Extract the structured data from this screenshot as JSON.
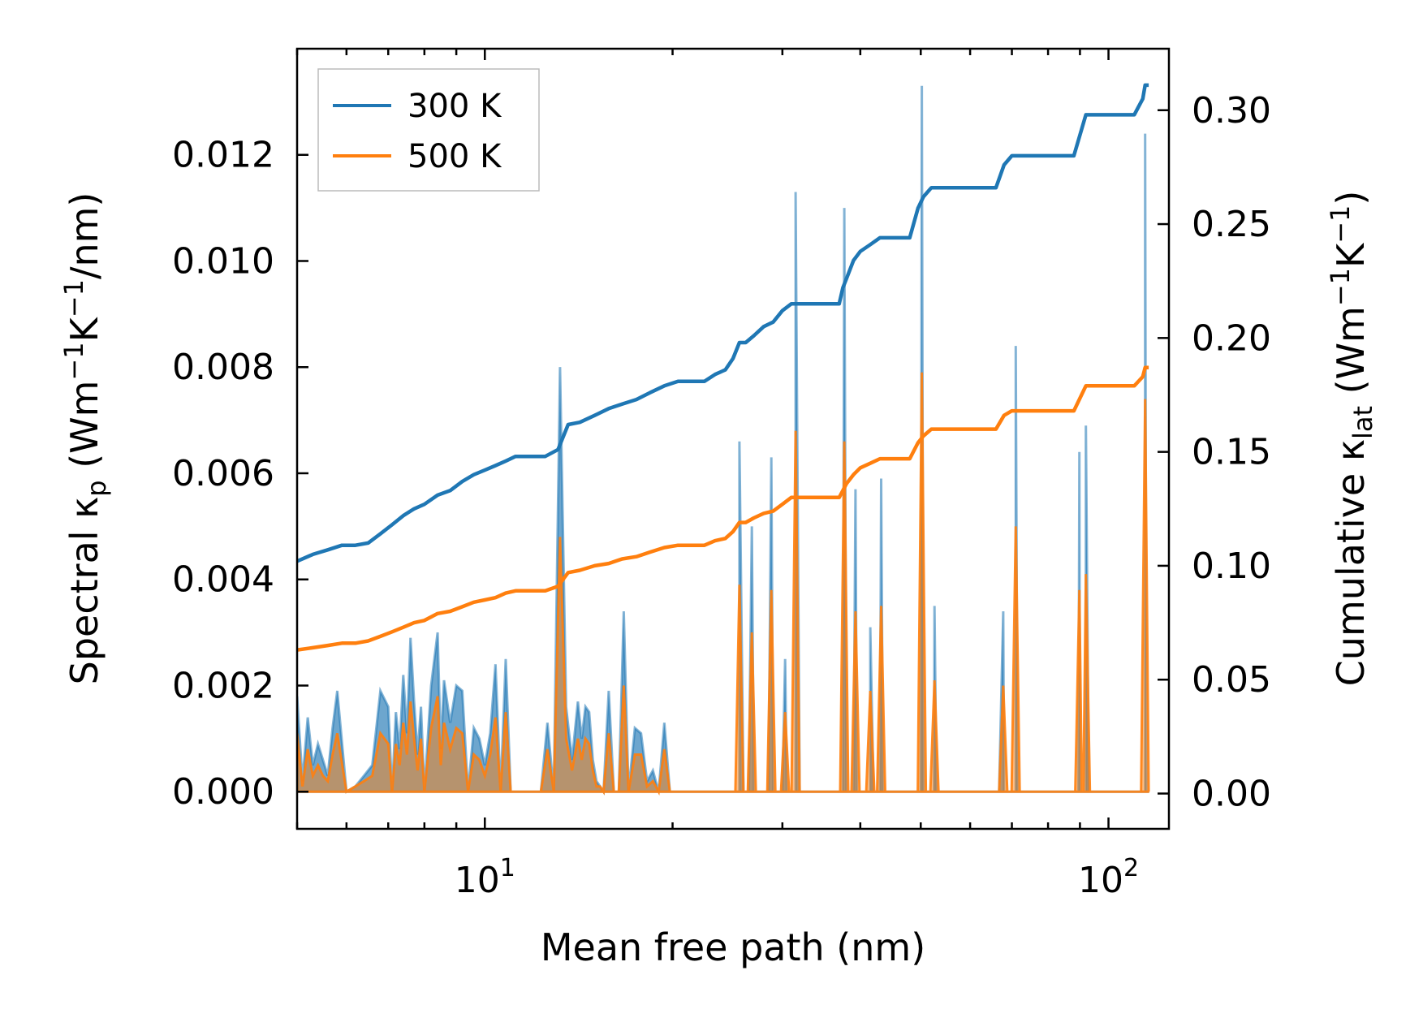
{
  "chart_data": {
    "type": "line",
    "xscale": "log",
    "xlim": [
      5.0,
      125.0
    ],
    "xlabel": "Mean free path (nm)",
    "x_tick_labels": [
      {
        "base": "10",
        "exp": "1",
        "value": 10
      },
      {
        "base": "10",
        "exp": "2",
        "value": 100
      }
    ],
    "left_axis": {
      "ylabel_parts": {
        "pre": "Spectral κ",
        "sub": "p",
        "mid1": " (Wm",
        "sup1": "−1",
        "mid2": "K",
        "sup2": "−1",
        "post": "/nm)"
      },
      "ylim": [
        -0.0007,
        0.014
      ],
      "ticks": [
        0.0,
        0.002,
        0.004,
        0.006,
        0.008,
        0.01,
        0.012
      ],
      "tick_labels": [
        "0.000",
        "0.002",
        "0.004",
        "0.006",
        "0.008",
        "0.010",
        "0.012"
      ]
    },
    "right_axis": {
      "ylabel_parts": {
        "pre": "Cumulative κ",
        "sub": "lat",
        "mid1": " (Wm",
        "sup1": "−1",
        "mid2": "K",
        "sup2": "−1",
        "post": ")"
      },
      "ylim": [
        -0.0155,
        0.327
      ],
      "ticks": [
        0.0,
        0.05,
        0.1,
        0.15,
        0.2,
        0.25,
        0.3
      ],
      "tick_labels": [
        "0.00",
        "0.05",
        "0.10",
        "0.15",
        "0.20",
        "0.25",
        "0.30"
      ]
    },
    "legend": {
      "position": "top-left",
      "entries": [
        "300 K",
        "500 K"
      ]
    },
    "series": [
      {
        "name": "300 K",
        "color": "#1f77b4",
        "spectral": {
          "x": [
            5.0,
            5.1,
            5.2,
            5.3,
            5.4,
            5.5,
            5.6,
            5.7,
            5.8,
            6.0,
            6.2,
            6.4,
            6.6,
            6.8,
            7.0,
            7.1,
            7.2,
            7.3,
            7.4,
            7.5,
            7.6,
            7.7,
            7.8,
            7.9,
            8.0,
            8.2,
            8.4,
            8.5,
            8.6,
            8.8,
            9.0,
            9.2,
            9.4,
            9.6,
            9.8,
            10.0,
            10.2,
            10.4,
            10.6,
            10.8,
            11.0,
            11.2,
            11.5,
            11.8,
            12.0,
            12.3,
            12.6,
            12.9,
            13.2,
            13.5,
            13.8,
            14.1,
            14.3,
            14.5,
            14.7,
            14.9,
            15.1,
            15.3,
            15.5,
            15.8,
            16.1,
            16.4,
            16.7,
            17.0,
            17.4,
            17.8,
            18.2,
            18.6,
            19.0,
            19.4,
            19.8,
            20.2,
            20.6,
            21.0,
            21.4,
            21.8,
            22.3,
            22.8,
            23.3,
            23.8,
            24.3,
            24.8,
            25.2,
            25.6,
            26.0,
            26.5,
            27.0,
            27.5,
            28.0,
            28.5,
            29.0,
            29.5,
            30.0,
            30.5,
            31.0,
            31.5,
            32.0,
            32.5,
            33.0,
            34.0,
            35.0,
            36.0,
            37.0,
            37.5,
            38.0,
            38.5,
            39.0,
            39.5,
            40.0,
            40.5,
            41.0,
            41.5,
            42.0,
            42.5,
            43.0,
            43.5,
            44.0,
            44.5,
            45.0,
            45.5,
            46.0,
            46.5,
            47.0,
            48.0,
            49.0,
            49.5,
            50.0,
            50.5,
            51.0,
            51.5,
            52.0,
            52.5,
            53.0,
            53.5,
            54.0,
            55.0,
            58.0,
            62.0,
            66.0,
            68.0,
            69.0,
            70.0,
            70.5,
            71.0,
            71.5,
            72.0,
            72.5,
            73.0,
            74.0,
            80.0,
            85.0,
            88.0,
            88.5,
            89.0,
            89.5,
            90.0,
            90.5,
            91.0,
            91.5,
            92.0,
            93.0,
            100.0,
            110.0,
            113.0,
            113.5,
            114.0,
            114.5,
            115.0
          ],
          "y": [
            0.0018,
            0.0002,
            0.0014,
            0.0005,
            0.0009,
            0.0006,
            0.0003,
            0.0012,
            0.0019,
            0.0,
            0.0001,
            0.0003,
            0.0005,
            0.0019,
            0.0016,
            0.0,
            0.0015,
            0.0008,
            0.0022,
            0.0011,
            0.0029,
            0.0017,
            0.0007,
            0.0016,
            0.0,
            0.002,
            0.003,
            0.0008,
            0.0021,
            0.0013,
            0.002,
            0.0019,
            0.0,
            0.0012,
            0.001,
            0.0005,
            0.0011,
            0.0024,
            0.0,
            0.0025,
            0.0,
            0.0,
            0.0,
            0.0,
            0.0,
            0.0,
            0.0013,
            0.0,
            0.008,
            0.0016,
            0.0006,
            0.0017,
            0.001,
            0.0016,
            0.0015,
            0.0006,
            0.0002,
            0.0001,
            0.0,
            0.0019,
            0.0,
            0.0,
            0.0034,
            0.0,
            0.0012,
            0.0011,
            0.0002,
            0.0004,
            0.0,
            0.0013,
            0.0,
            0.0,
            0.0,
            0.0,
            0.0,
            0.0,
            0.0,
            0.0,
            0.0,
            0.0,
            0.0,
            0.0,
            0.0,
            0.0,
            0.0,
            0.0,
            0.0,
            0.0,
            0.0,
            0.0,
            0.0,
            0.0,
            0.0,
            0.0,
            0.0,
            0.0,
            0.0,
            0.0,
            0.0,
            0.0,
            0.0,
            0.0,
            0.0,
            0.0,
            0.0,
            0.0,
            0.0,
            0.0,
            0.0,
            0.0,
            0.0,
            0.0,
            0.0,
            0.0,
            0.0,
            0.0,
            0.0,
            0.0,
            0.0,
            0.0,
            0.0,
            0.0,
            0.0,
            0.0,
            0.0,
            0.0,
            0.0,
            0.0,
            0.0,
            0.0,
            0.0,
            0.0,
            0.0,
            0.0,
            0.0,
            0.0,
            0.0,
            0.0,
            0.0,
            0.0,
            0.0,
            0.0,
            0.0,
            0.0,
            0.0,
            0.0,
            0.0,
            0.0,
            0.0,
            0.0,
            0.0,
            0.0,
            0.0,
            0.0,
            0.0,
            0.0,
            0.0,
            0.0,
            0.0,
            0.0,
            0.0,
            0.0,
            0.0,
            0.0,
            0.0,
            0.0,
            0.0,
            0.0
          ],
          "peaks": [
            {
              "x": 25.6,
              "y": 0.0066
            },
            {
              "x": 26.8,
              "y": 0.005
            },
            {
              "x": 28.8,
              "y": 0.0063
            },
            {
              "x": 30.3,
              "y": 0.0025
            },
            {
              "x": 31.5,
              "y": 0.0113
            },
            {
              "x": 37.7,
              "y": 0.011
            },
            {
              "x": 39.3,
              "y": 0.0057
            },
            {
              "x": 41.5,
              "y": 0.0031
            },
            {
              "x": 43.2,
              "y": 0.0059
            },
            {
              "x": 50.2,
              "y": 0.0133
            },
            {
              "x": 52.6,
              "y": 0.0035
            },
            {
              "x": 67.8,
              "y": 0.0034
            },
            {
              "x": 71.0,
              "y": 0.0084
            },
            {
              "x": 89.8,
              "y": 0.0064
            },
            {
              "x": 92.0,
              "y": 0.0069
            },
            {
              "x": 114.5,
              "y": 0.0124
            }
          ]
        },
        "cumulative": {
          "x": [
            5.0,
            5.3,
            5.6,
            5.9,
            6.2,
            6.5,
            6.8,
            7.1,
            7.4,
            7.7,
            8.0,
            8.4,
            8.8,
            9.2,
            9.6,
            10.0,
            10.4,
            10.8,
            11.2,
            11.8,
            12.5,
            13.1,
            13.6,
            14.2,
            15.0,
            15.8,
            16.6,
            17.5,
            18.4,
            19.4,
            20.4,
            21.4,
            22.5,
            23.4,
            24.3,
            25.0,
            25.6,
            26.2,
            27.0,
            28.0,
            29.0,
            30.0,
            31.0,
            32.0,
            35.0,
            37.0,
            37.5,
            38.0,
            39.0,
            40.0,
            41.5,
            43.0,
            45.0,
            48.0,
            49.5,
            50.5,
            52.0,
            53.5,
            55.0,
            60.0,
            66.0,
            68.0,
            70.0,
            71.0,
            75.0,
            85.0,
            88.0,
            92.0,
            100.0,
            110.0,
            113.5,
            114.5,
            116.0
          ],
          "y": [
            0.102,
            0.105,
            0.107,
            0.109,
            0.109,
            0.11,
            0.114,
            0.118,
            0.122,
            0.125,
            0.127,
            0.131,
            0.133,
            0.137,
            0.14,
            0.142,
            0.144,
            0.146,
            0.148,
            0.148,
            0.148,
            0.151,
            0.162,
            0.163,
            0.166,
            0.169,
            0.171,
            0.173,
            0.176,
            0.179,
            0.181,
            0.181,
            0.181,
            0.184,
            0.186,
            0.191,
            0.198,
            0.198,
            0.201,
            0.205,
            0.207,
            0.212,
            0.215,
            0.215,
            0.215,
            0.215,
            0.222,
            0.226,
            0.234,
            0.238,
            0.241,
            0.244,
            0.244,
            0.244,
            0.257,
            0.262,
            0.266,
            0.266,
            0.266,
            0.266,
            0.266,
            0.276,
            0.28,
            0.28,
            0.28,
            0.28,
            0.28,
            0.298,
            0.298,
            0.298,
            0.305,
            0.311,
            0.311
          ]
        }
      },
      {
        "name": "500 K",
        "color": "#ff7f0e",
        "spectral": {
          "x": [
            5.0,
            5.1,
            5.2,
            5.3,
            5.4,
            5.5,
            5.6,
            5.7,
            5.8,
            6.0,
            6.2,
            6.4,
            6.6,
            6.8,
            7.0,
            7.1,
            7.2,
            7.3,
            7.4,
            7.5,
            7.6,
            7.7,
            7.8,
            7.9,
            8.0,
            8.2,
            8.4,
            8.5,
            8.6,
            8.8,
            9.0,
            9.2,
            9.4,
            9.6,
            9.8,
            10.0,
            10.2,
            10.4,
            10.6,
            10.8,
            11.0,
            11.2,
            11.5,
            11.8,
            12.0,
            12.3,
            12.6,
            12.9,
            13.2,
            13.5,
            13.8,
            14.1,
            14.3,
            14.5,
            14.7,
            14.9,
            15.1,
            15.3,
            15.5,
            15.8,
            16.1,
            16.4,
            16.7,
            17.0,
            17.4,
            17.8,
            18.2,
            18.6,
            19.0,
            19.4,
            19.8,
            20.2,
            20.6,
            21.0
          ],
          "y": [
            0.0011,
            0.0001,
            0.0008,
            0.0003,
            0.0005,
            0.0003,
            0.0002,
            0.0007,
            0.0011,
            0.0,
            0.0001,
            0.0002,
            0.0003,
            0.0011,
            0.0009,
            0.0,
            0.0009,
            0.0005,
            0.0013,
            0.0007,
            0.0017,
            0.001,
            0.0004,
            0.001,
            0.0,
            0.0012,
            0.0018,
            0.0005,
            0.0013,
            0.0008,
            0.0012,
            0.0011,
            0.0,
            0.0007,
            0.0006,
            0.0003,
            0.0007,
            0.0014,
            0.0,
            0.0015,
            0.0,
            0.0,
            0.0,
            0.0,
            0.0,
            0.0,
            0.0008,
            0.0,
            0.0048,
            0.001,
            0.0004,
            0.001,
            0.0006,
            0.001,
            0.0009,
            0.0004,
            0.0001,
            0.0001,
            0.0,
            0.0011,
            0.0,
            0.0,
            0.002,
            0.0,
            0.0007,
            0.0007,
            0.0001,
            0.0002,
            0.0,
            0.0008,
            0.0,
            0.0,
            0.0,
            0.0
          ],
          "peaks": [
            {
              "x": 25.6,
              "y": 0.0039
            },
            {
              "x": 26.8,
              "y": 0.003
            },
            {
              "x": 28.8,
              "y": 0.0038
            },
            {
              "x": 30.3,
              "y": 0.0015
            },
            {
              "x": 31.5,
              "y": 0.0068
            },
            {
              "x": 37.7,
              "y": 0.0066
            },
            {
              "x": 39.3,
              "y": 0.0034
            },
            {
              "x": 41.5,
              "y": 0.0019
            },
            {
              "x": 43.2,
              "y": 0.0035
            },
            {
              "x": 50.2,
              "y": 0.0079
            },
            {
              "x": 52.6,
              "y": 0.0021
            },
            {
              "x": 67.8,
              "y": 0.002
            },
            {
              "x": 71.0,
              "y": 0.005
            },
            {
              "x": 89.8,
              "y": 0.0038
            },
            {
              "x": 92.0,
              "y": 0.0041
            },
            {
              "x": 114.5,
              "y": 0.0074
            }
          ]
        },
        "cumulative": {
          "x": [
            5.0,
            5.3,
            5.6,
            5.9,
            6.2,
            6.5,
            6.8,
            7.1,
            7.4,
            7.7,
            8.0,
            8.4,
            8.8,
            9.2,
            9.6,
            10.0,
            10.4,
            10.8,
            11.2,
            11.8,
            12.5,
            13.1,
            13.6,
            14.2,
            15.0,
            15.8,
            16.6,
            17.5,
            18.4,
            19.4,
            20.4,
            21.4,
            22.5,
            23.4,
            24.3,
            25.0,
            25.6,
            26.2,
            27.0,
            28.0,
            29.0,
            30.0,
            31.0,
            32.0,
            35.0,
            37.0,
            37.5,
            38.0,
            39.0,
            40.0,
            41.5,
            43.0,
            45.0,
            48.0,
            49.5,
            50.5,
            52.0,
            53.5,
            55.0,
            60.0,
            66.0,
            68.0,
            70.0,
            71.0,
            75.0,
            85.0,
            88.0,
            92.0,
            100.0,
            110.0,
            113.5,
            114.5,
            116.0
          ],
          "y": [
            0.063,
            0.064,
            0.065,
            0.066,
            0.066,
            0.067,
            0.069,
            0.071,
            0.073,
            0.075,
            0.076,
            0.079,
            0.08,
            0.082,
            0.084,
            0.085,
            0.086,
            0.088,
            0.089,
            0.089,
            0.089,
            0.091,
            0.097,
            0.098,
            0.1,
            0.101,
            0.103,
            0.104,
            0.106,
            0.108,
            0.109,
            0.109,
            0.109,
            0.111,
            0.112,
            0.115,
            0.119,
            0.119,
            0.121,
            0.123,
            0.124,
            0.127,
            0.13,
            0.13,
            0.13,
            0.13,
            0.133,
            0.136,
            0.14,
            0.143,
            0.145,
            0.147,
            0.147,
            0.147,
            0.154,
            0.157,
            0.16,
            0.16,
            0.16,
            0.16,
            0.16,
            0.166,
            0.168,
            0.168,
            0.168,
            0.168,
            0.168,
            0.179,
            0.179,
            0.179,
            0.183,
            0.187,
            0.187
          ]
        }
      }
    ]
  }
}
